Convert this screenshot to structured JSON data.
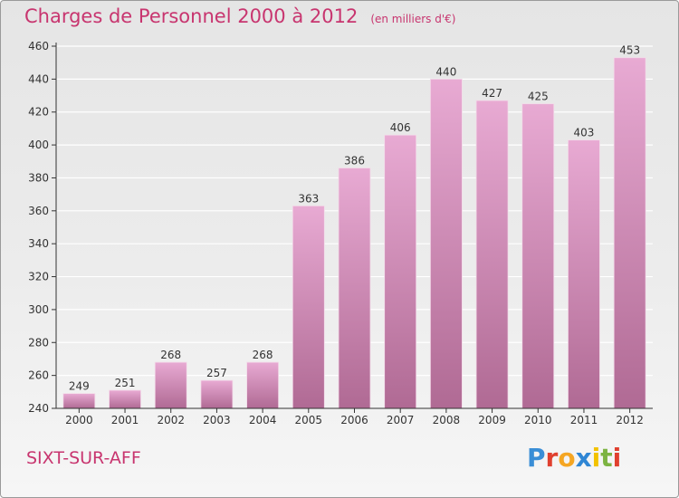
{
  "title": "Charges de Personnel 2000 à 2012",
  "subtitle": "(en milliers d'€)",
  "commune": "SIXT-SUR-AFF",
  "logo": {
    "text": "Proxiti",
    "letter_colors": [
      "#3a8ed6",
      "#e0402f",
      "#f5a623",
      "#2f86d4",
      "#f2c200",
      "#7cb342",
      "#e0402f"
    ]
  },
  "colors": {
    "title": "#c8356f",
    "bar_top": "#e8aad3",
    "bar_bottom": "#b06a94",
    "grid": "#ffffff",
    "axis": "#333333"
  },
  "chart_data": {
    "type": "bar",
    "categories": [
      "2000",
      "2001",
      "2002",
      "2003",
      "2004",
      "2005",
      "2006",
      "2007",
      "2008",
      "2009",
      "2010",
      "2011",
      "2012"
    ],
    "values": [
      249,
      251,
      268,
      257,
      268,
      363,
      386,
      406,
      440,
      427,
      425,
      403,
      453
    ],
    "ylim": [
      240,
      460
    ],
    "yticks": [
      240,
      260,
      280,
      300,
      320,
      340,
      360,
      380,
      400,
      420,
      440,
      460
    ],
    "grid": true,
    "legend": "none"
  }
}
